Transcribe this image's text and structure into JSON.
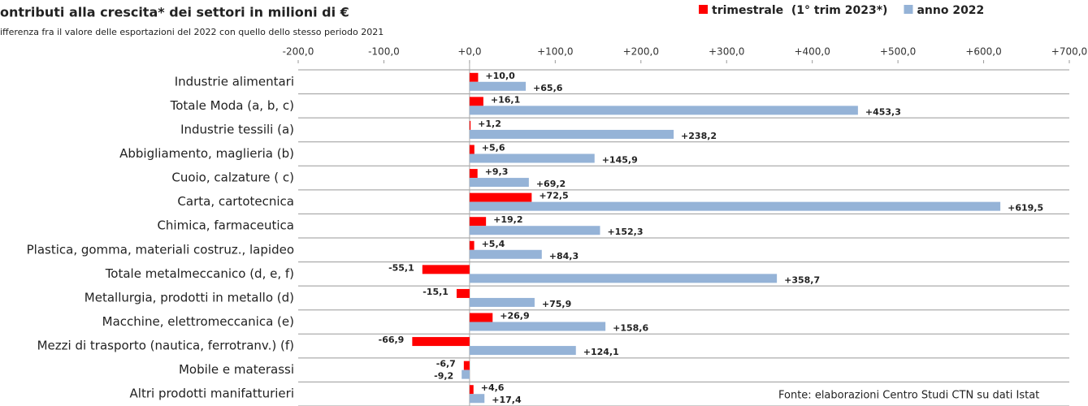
{
  "chart_data": {
    "type": "hbar",
    "title": "ontributi alla crescita* dei settori in milioni di €",
    "subtitle": "ifferenza fra il valore delle esportazioni del 2022 con quello dello stesso periodo 2021",
    "source": "Fonte: elaborazioni Centro Studi CTN su dati Istat",
    "legend": "top-right",
    "categories": [
      "Industrie alimentari",
      "Totale Moda (a, b, c)",
      "Industrie tessili (a)",
      "Abbigliamento, maglieria (b)",
      "Cuoio, calzature ( c)",
      "Carta, cartotecnica",
      "Chimica, farmaceutica",
      "Plastica, gomma, materiali costruz., lapideo",
      "Totale metalmeccanico (d, e, f)",
      "Metallurgia, prodotti in metallo (d)",
      "Macchine, elettromeccanica (e)",
      "Mezzi di trasporto (nautica, ferrotranv.) (f)",
      "Mobile e materassi",
      "Altri prodotti manifatturieri"
    ],
    "series": [
      {
        "name": "trimestrale  (1° trim 2023*)",
        "color": "#ff0000",
        "values": [
          10.0,
          16.1,
          1.2,
          5.6,
          9.3,
          72.5,
          19.2,
          5.4,
          -55.1,
          -15.1,
          26.9,
          -66.9,
          -6.7,
          4.6
        ],
        "value_labels": [
          "+10,0",
          "+16,1",
          "+1,2",
          "+5,6",
          "+9,3",
          "+72,5",
          "+19,2",
          "+5,4",
          "-55,1",
          "-15,1",
          "+26,9",
          "-66,9",
          "-6,7",
          "+4,6"
        ]
      },
      {
        "name": "anno 2022",
        "color": "#95b3d7",
        "values": [
          65.6,
          453.3,
          238.2,
          145.9,
          69.2,
          619.5,
          152.3,
          84.3,
          358.7,
          75.9,
          158.6,
          124.1,
          -9.2,
          17.4
        ],
        "value_labels": [
          "+65,6",
          "+453,3",
          "+238,2",
          "+145,9",
          "+69,2",
          "+619,5",
          "+152,3",
          "+84,3",
          "+358,7",
          "+75,9",
          "+158,6",
          "+124,1",
          "-9,2",
          "+17,4"
        ]
      }
    ],
    "xlim": [
      -200,
      700
    ],
    "xticks": [
      {
        "value": -200,
        "label": "-200,0"
      },
      {
        "value": -100,
        "label": "-100,0"
      },
      {
        "value": 0,
        "label": "+0,0"
      },
      {
        "value": 100,
        "label": "+100,0"
      },
      {
        "value": 200,
        "label": "+200,0"
      },
      {
        "value": 300,
        "label": "+300,0"
      },
      {
        "value": 400,
        "label": "+400,0"
      },
      {
        "value": 500,
        "label": "+500,0"
      },
      {
        "value": 600,
        "label": "+600,0"
      },
      {
        "value": 700,
        "label": "+700,0"
      }
    ]
  }
}
